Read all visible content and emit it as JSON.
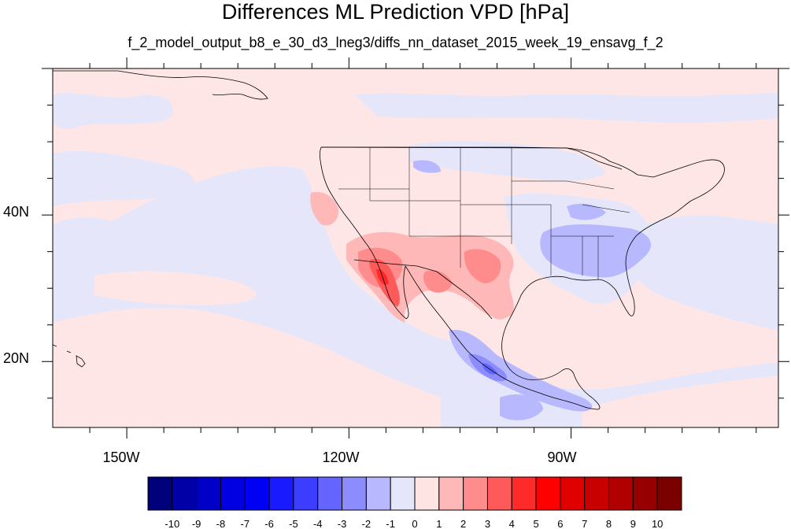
{
  "title": "Differences ML Prediction VPD [hPa]",
  "subtitle": "f_2_model_output_b8_e_30_d3_lneg3/diffs_nn_dataset_2015_week_19_ensavg_f_2",
  "map": {
    "lon_range": [
      -160,
      -62
    ],
    "lat_range": [
      11,
      60
    ],
    "x_ticks": [
      {
        "value": -150,
        "label": "150W"
      },
      {
        "value": -120,
        "label": "120W"
      },
      {
        "value": -90,
        "label": "90W"
      }
    ],
    "y_ticks": [
      {
        "value": 40,
        "label": "40N"
      },
      {
        "value": 20,
        "label": "20N"
      }
    ],
    "background_level": "0 to 1"
  },
  "colorbar": {
    "labels": [
      "-10",
      "-9",
      "-8",
      "-7",
      "-6",
      "-5",
      "-4",
      "-3",
      "-2",
      "-1",
      "0",
      "1",
      "2",
      "3",
      "4",
      "5",
      "6",
      "7",
      "8",
      "9",
      "10"
    ],
    "colors": [
      "#00007a",
      "#0000a8",
      "#0000c8",
      "#0000e0",
      "#0000f5",
      "#1a1aff",
      "#3d3dff",
      "#6464ff",
      "#8c8cff",
      "#b8b8ff",
      "#e6e6fa",
      "#ffe4e4",
      "#ffb8b8",
      "#ff8c8c",
      "#ff5a5a",
      "#ff2a2a",
      "#ff0000",
      "#e00000",
      "#c80000",
      "#b00000",
      "#960000",
      "#7a0000"
    ]
  }
}
